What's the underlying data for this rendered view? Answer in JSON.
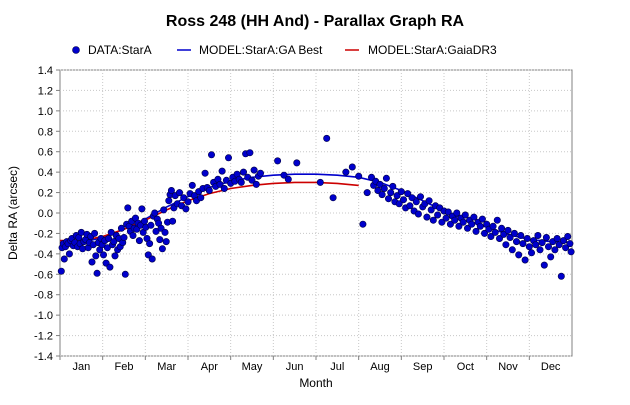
{
  "chart_data": {
    "type": "scatter",
    "title": "Ross 248 (HH And) - Parallax Graph RA",
    "xlabel": "Month",
    "ylabel": "Delta RA (arcsec)",
    "ylim": [
      -1.4,
      1.4
    ],
    "yticks": [
      1.4,
      1.2,
      1.0,
      0.8,
      0.6,
      0.4,
      0.2,
      0.0,
      -0.2,
      -0.4,
      -0.6,
      -0.8,
      -1.0,
      -1.2,
      -1.4
    ],
    "ytick_labels": [
      "1.4",
      "1.2",
      "1.0",
      "0.8",
      "0.6",
      "0.4",
      "0.2",
      "0.0",
      "-0.2",
      "-0.4",
      "-0.6",
      "-0.8",
      "-1.0",
      "-1.2",
      "-1.4"
    ],
    "xlim": [
      0,
      12
    ],
    "months": [
      "Jan",
      "Feb",
      "Mar",
      "Apr",
      "May",
      "Jun",
      "Jul",
      "Aug",
      "Sep",
      "Oct",
      "Nov",
      "Dec"
    ],
    "grid": true,
    "legend_position": "top",
    "legend": [
      {
        "label": "DATA:StarA",
        "kind": "marker",
        "color": "#0000cc"
      },
      {
        "label": "MODEL:StarA:GA Best",
        "kind": "line",
        "color": "#0000cc"
      },
      {
        "label": "MODEL:StarA:GaiaDR3",
        "kind": "line",
        "color": "#cc0000"
      }
    ],
    "series": [
      {
        "name": "DATA:StarA",
        "color": "#0000cc",
        "points": [
          [
            0.03,
            -0.57
          ],
          [
            0.05,
            -0.34
          ],
          [
            0.08,
            -0.3
          ],
          [
            0.1,
            -0.45
          ],
          [
            0.13,
            -0.33
          ],
          [
            0.16,
            -0.28
          ],
          [
            0.19,
            -0.3
          ],
          [
            0.22,
            -0.4
          ],
          [
            0.25,
            -0.27
          ],
          [
            0.28,
            -0.25
          ],
          [
            0.31,
            -0.32
          ],
          [
            0.35,
            -0.29
          ],
          [
            0.38,
            -0.22
          ],
          [
            0.41,
            -0.33
          ],
          [
            0.44,
            -0.24
          ],
          [
            0.47,
            -0.3
          ],
          [
            0.5,
            -0.19
          ],
          [
            0.53,
            -0.35
          ],
          [
            0.56,
            -0.28
          ],
          [
            0.6,
            -0.26
          ],
          [
            0.63,
            -0.21
          ],
          [
            0.66,
            -0.34
          ],
          [
            0.69,
            -0.29
          ],
          [
            0.72,
            -0.23
          ],
          [
            0.75,
            -0.48
          ],
          [
            0.78,
            -0.31
          ],
          [
            0.81,
            -0.2
          ],
          [
            0.84,
            -0.42
          ],
          [
            0.87,
            -0.59
          ],
          [
            0.9,
            -0.29
          ],
          [
            0.93,
            -0.36
          ],
          [
            0.96,
            -0.25
          ],
          [
            0.99,
            -0.31
          ],
          [
            1.02,
            -0.41
          ],
          [
            1.05,
            -0.27
          ],
          [
            1.08,
            -0.49
          ],
          [
            1.11,
            -0.34
          ],
          [
            1.14,
            -0.25
          ],
          [
            1.17,
            -0.53
          ],
          [
            1.2,
            -0.19
          ],
          [
            1.23,
            -0.31
          ],
          [
            1.26,
            -0.28
          ],
          [
            1.29,
            -0.42
          ],
          [
            1.32,
            -0.22
          ],
          [
            1.35,
            -0.36
          ],
          [
            1.38,
            -0.25
          ],
          [
            1.41,
            -0.33
          ],
          [
            1.44,
            -0.15
          ],
          [
            1.47,
            -0.29
          ],
          [
            1.5,
            -0.24
          ],
          [
            1.53,
            -0.6
          ],
          [
            1.56,
            -0.11
          ],
          [
            1.59,
            0.05
          ],
          [
            1.62,
            -0.13
          ],
          [
            1.65,
            -0.18
          ],
          [
            1.68,
            -0.08
          ],
          [
            1.71,
            -0.22
          ],
          [
            1.74,
            -0.15
          ],
          [
            1.77,
            -0.05
          ],
          [
            1.8,
            -0.16
          ],
          [
            1.83,
            -0.1
          ],
          [
            1.86,
            -0.27
          ],
          [
            1.89,
            -0.12
          ],
          [
            1.92,
            0.04
          ],
          [
            1.95,
            -0.19
          ],
          [
            1.98,
            -0.08
          ],
          [
            2.01,
            -0.14
          ],
          [
            2.04,
            -0.25
          ],
          [
            2.07,
            -0.41
          ],
          [
            2.1,
            -0.3
          ],
          [
            2.13,
            -0.12
          ],
          [
            2.16,
            -0.45
          ],
          [
            2.19,
            -0.03
          ],
          [
            2.22,
            0.0
          ],
          [
            2.25,
            -0.18
          ],
          [
            2.28,
            -0.06
          ],
          [
            2.31,
            -0.1
          ],
          [
            2.34,
            -0.26
          ],
          [
            2.37,
            -0.15
          ],
          [
            2.4,
            -0.35
          ],
          [
            2.43,
            0.03
          ],
          [
            2.46,
            -0.19
          ],
          [
            2.49,
            -0.28
          ],
          [
            2.52,
            -0.09
          ],
          [
            2.55,
            0.12
          ],
          [
            2.58,
            0.18
          ],
          [
            2.61,
            0.22
          ],
          [
            2.64,
            -0.08
          ],
          [
            2.67,
            0.05
          ],
          [
            2.7,
            0.17
          ],
          [
            2.75,
            0.09
          ],
          [
            2.8,
            0.2
          ],
          [
            2.85,
            0.07
          ],
          [
            2.9,
            0.15
          ],
          [
            2.95,
            0.04
          ],
          [
            3.0,
            0.11
          ],
          [
            3.05,
            0.19
          ],
          [
            3.1,
            0.27
          ],
          [
            3.15,
            0.17
          ],
          [
            3.2,
            0.12
          ],
          [
            3.25,
            0.21
          ],
          [
            3.3,
            0.15
          ],
          [
            3.35,
            0.24
          ],
          [
            3.4,
            0.39
          ],
          [
            3.45,
            0.25
          ],
          [
            3.5,
            0.22
          ],
          [
            3.55,
            0.57
          ],
          [
            3.6,
            0.3
          ],
          [
            3.65,
            0.26
          ],
          [
            3.7,
            0.33
          ],
          [
            3.75,
            0.28
          ],
          [
            3.8,
            0.41
          ],
          [
            3.85,
            0.24
          ],
          [
            3.9,
            0.32
          ],
          [
            3.95,
            0.54
          ],
          [
            4.0,
            0.29
          ],
          [
            4.05,
            0.35
          ],
          [
            4.1,
            0.31
          ],
          [
            4.15,
            0.38
          ],
          [
            4.2,
            0.33
          ],
          [
            4.25,
            0.3
          ],
          [
            4.3,
            0.4
          ],
          [
            4.35,
            0.58
          ],
          [
            4.4,
            0.35
          ],
          [
            4.45,
            0.59
          ],
          [
            4.5,
            0.32
          ],
          [
            4.55,
            0.42
          ],
          [
            4.6,
            0.28
          ],
          [
            4.65,
            0.36
          ],
          [
            4.7,
            0.39
          ],
          [
            5.1,
            0.51
          ],
          [
            5.25,
            0.37
          ],
          [
            5.35,
            0.33
          ],
          [
            5.55,
            0.49
          ],
          [
            6.1,
            0.3
          ],
          [
            6.25,
            0.73
          ],
          [
            6.4,
            0.15
          ],
          [
            6.7,
            0.4
          ],
          [
            6.85,
            0.45
          ],
          [
            7.0,
            0.36
          ],
          [
            7.1,
            -0.11
          ],
          [
            7.2,
            0.2
          ],
          [
            7.3,
            0.35
          ],
          [
            7.35,
            0.27
          ],
          [
            7.4,
            0.31
          ],
          [
            7.45,
            0.22
          ],
          [
            7.5,
            0.28
          ],
          [
            7.55,
            0.18
          ],
          [
            7.6,
            0.24
          ],
          [
            7.65,
            0.34
          ],
          [
            7.7,
            0.14
          ],
          [
            7.75,
            0.2
          ],
          [
            7.8,
            0.26
          ],
          [
            7.85,
            0.11
          ],
          [
            7.9,
            0.17
          ],
          [
            7.95,
            0.09
          ],
          [
            8.0,
            0.21
          ],
          [
            8.05,
            0.13
          ],
          [
            8.1,
            0.05
          ],
          [
            8.15,
            0.19
          ],
          [
            8.2,
            0.07
          ],
          [
            8.25,
            0.15
          ],
          [
            8.3,
            0.02
          ],
          [
            8.35,
            0.11
          ],
          [
            8.4,
            -0.01
          ],
          [
            8.45,
            0.16
          ],
          [
            8.5,
            0.06
          ],
          [
            8.55,
            0.09
          ],
          [
            8.6,
            -0.04
          ],
          [
            8.65,
            0.12
          ],
          [
            8.7,
            0.03
          ],
          [
            8.75,
            -0.07
          ],
          [
            8.8,
            0.07
          ],
          [
            8.85,
            -0.02
          ],
          [
            8.9,
            0.05
          ],
          [
            8.95,
            -0.09
          ],
          [
            9.0,
            0.02
          ],
          [
            9.05,
            -0.05
          ],
          [
            9.1,
            0.01
          ],
          [
            9.15,
            -0.11
          ],
          [
            9.2,
            -0.03
          ],
          [
            9.25,
            -0.07
          ],
          [
            9.3,
            0.0
          ],
          [
            9.35,
            -0.13
          ],
          [
            9.4,
            -0.05
          ],
          [
            9.45,
            -0.09
          ],
          [
            9.5,
            -0.02
          ],
          [
            9.55,
            -0.15
          ],
          [
            9.6,
            -0.07
          ],
          [
            9.65,
            -0.11
          ],
          [
            9.7,
            -0.04
          ],
          [
            9.75,
            -0.18
          ],
          [
            9.8,
            -0.09
          ],
          [
            9.85,
            -0.13
          ],
          [
            9.9,
            -0.06
          ],
          [
            9.95,
            -0.2
          ],
          [
            10.0,
            -0.11
          ],
          [
            10.05,
            -0.16
          ],
          [
            10.1,
            -0.23
          ],
          [
            10.15,
            -0.13
          ],
          [
            10.2,
            -0.19
          ],
          [
            10.25,
            -0.07
          ],
          [
            10.3,
            -0.25
          ],
          [
            10.35,
            -0.15
          ],
          [
            10.4,
            -0.21
          ],
          [
            10.45,
            -0.31
          ],
          [
            10.5,
            -0.17
          ],
          [
            10.55,
            -0.24
          ],
          [
            10.6,
            -0.36
          ],
          [
            10.65,
            -0.2
          ],
          [
            10.7,
            -0.28
          ],
          [
            10.75,
            -0.41
          ],
          [
            10.8,
            -0.22
          ],
          [
            10.85,
            -0.3
          ],
          [
            10.9,
            -0.46
          ],
          [
            10.95,
            -0.25
          ],
          [
            11.0,
            -0.33
          ],
          [
            11.05,
            -0.39
          ],
          [
            11.1,
            -0.27
          ],
          [
            11.15,
            -0.31
          ],
          [
            11.2,
            -0.22
          ],
          [
            11.25,
            -0.36
          ],
          [
            11.3,
            -0.29
          ],
          [
            11.35,
            -0.51
          ],
          [
            11.4,
            -0.24
          ],
          [
            11.45,
            -0.33
          ],
          [
            11.5,
            -0.43
          ],
          [
            11.55,
            -0.28
          ],
          [
            11.6,
            -0.36
          ],
          [
            11.65,
            -0.25
          ],
          [
            11.7,
            -0.31
          ],
          [
            11.75,
            -0.62
          ],
          [
            11.8,
            -0.27
          ],
          [
            11.85,
            -0.34
          ],
          [
            11.9,
            -0.23
          ],
          [
            11.95,
            -0.3
          ],
          [
            11.98,
            -0.38
          ]
        ]
      },
      {
        "name": "MODEL:StarA:GA Best",
        "color": "#0000cc",
        "points": [
          [
            0.0,
            -0.29
          ],
          [
            0.5,
            -0.29
          ],
          [
            1.0,
            -0.24
          ],
          [
            1.5,
            -0.16
          ],
          [
            2.0,
            -0.06
          ],
          [
            2.5,
            0.06
          ],
          [
            3.0,
            0.16
          ],
          [
            3.5,
            0.25
          ],
          [
            4.0,
            0.31
          ],
          [
            4.5,
            0.35
          ],
          [
            5.0,
            0.37
          ],
          [
            5.5,
            0.38
          ],
          [
            6.0,
            0.38
          ],
          [
            6.5,
            0.37
          ],
          [
            7.0,
            0.35
          ],
          [
            7.5,
            0.3
          ],
          [
            8.0,
            0.22
          ],
          [
            8.5,
            0.12
          ],
          [
            9.0,
            0.02
          ],
          [
            9.5,
            -0.07
          ],
          [
            10.0,
            -0.14
          ],
          [
            10.5,
            -0.21
          ],
          [
            11.0,
            -0.26
          ],
          [
            11.5,
            -0.28
          ],
          [
            12.0,
            -0.29
          ]
        ]
      },
      {
        "name": "MODEL:StarA:GaiaDR3",
        "color": "#cc0000",
        "points": [
          [
            0.0,
            -0.27
          ],
          [
            0.5,
            -0.27
          ],
          [
            1.0,
            -0.23
          ],
          [
            1.5,
            -0.16
          ],
          [
            2.0,
            -0.07
          ],
          [
            2.5,
            0.03
          ],
          [
            3.0,
            0.12
          ],
          [
            3.5,
            0.19
          ],
          [
            4.0,
            0.24
          ],
          [
            4.5,
            0.27
          ],
          [
            5.0,
            0.29
          ],
          [
            5.5,
            0.3
          ],
          [
            6.0,
            0.3
          ],
          [
            6.5,
            0.29
          ],
          [
            7.0,
            0.27
          ]
        ]
      }
    ]
  }
}
